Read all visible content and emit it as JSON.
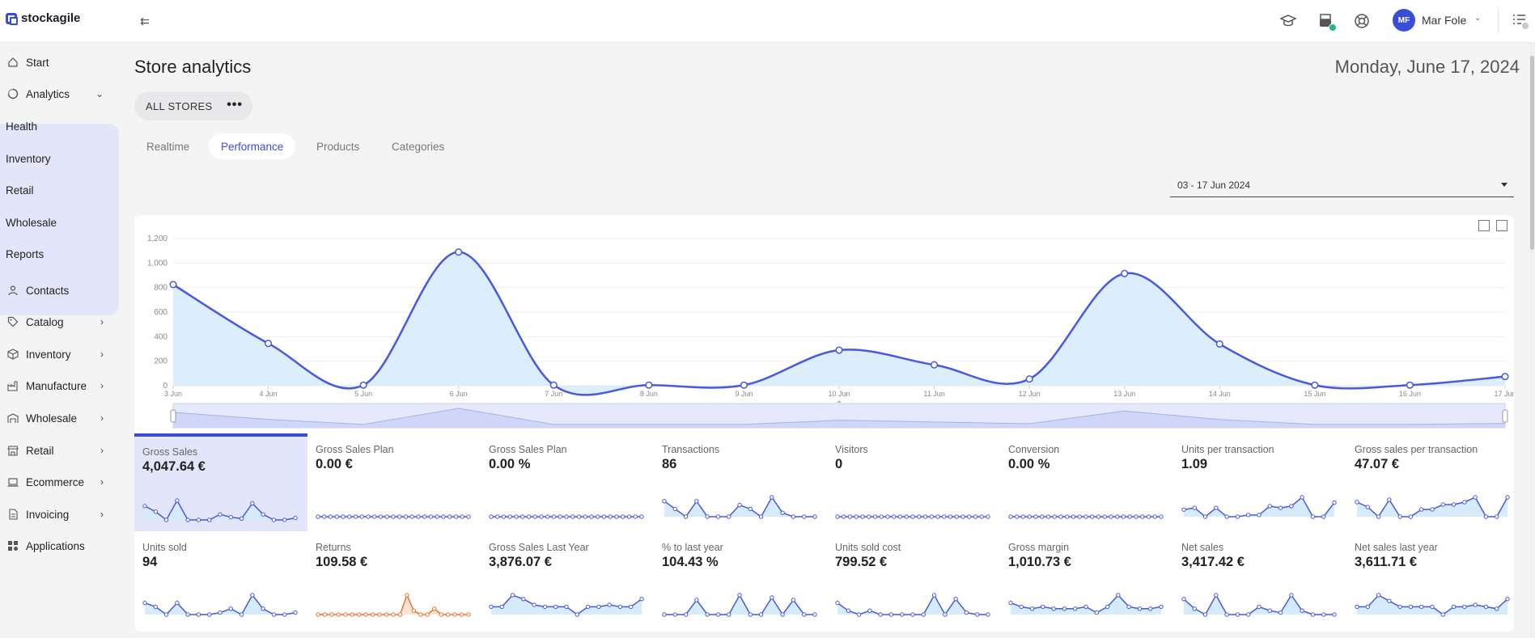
{
  "app": {
    "name": "stockagile"
  },
  "user": {
    "initials": "MF",
    "name": "Mar Fole"
  },
  "colors": {
    "accent": "#3a4dd6",
    "area_fill": "#d6ebfb",
    "line": "#4759df",
    "returns": "#e8732c",
    "active_tile": "#e3e6fa",
    "success": "#1dbb7a"
  },
  "sidebar": {
    "items": [
      {
        "label": "Start",
        "icon": "home-icon"
      },
      {
        "label": "Analytics",
        "icon": "analytics-icon",
        "expanded": true
      },
      {
        "label": "Contacts",
        "icon": "person-icon"
      },
      {
        "label": "Catalog",
        "icon": "tag-icon"
      },
      {
        "label": "Inventory",
        "icon": "box-icon"
      },
      {
        "label": "Manufacture",
        "icon": "factory-icon"
      },
      {
        "label": "Wholesale",
        "icon": "warehouse-icon"
      },
      {
        "label": "Retail",
        "icon": "store-icon"
      },
      {
        "label": "Ecommerce",
        "icon": "laptop-icon"
      },
      {
        "label": "Invoicing",
        "icon": "invoice-icon"
      },
      {
        "label": "Applications",
        "icon": "apps-icon"
      }
    ],
    "analytics_sub": [
      "Health",
      "Inventory",
      "Retail",
      "Wholesale",
      "Reports"
    ]
  },
  "page": {
    "title": "Store analytics",
    "date": "Monday, June 17, 2024",
    "stores_label": "ALL STORES",
    "more_label": "•••",
    "tabs": [
      "Realtime",
      "Performance",
      "Products",
      "Categories"
    ],
    "active_tab": "Performance",
    "date_range": "03 - 17 Jun 2024"
  },
  "chart_data": {
    "type": "area",
    "categories": [
      "3 Jun",
      "4 Jun",
      "5 Jun",
      "6 Jun",
      "7 Jun",
      "8 Jun",
      "9 Jun",
      "10 Jun",
      "11 Jun",
      "12 Jun",
      "13 Jun",
      "14 Jun",
      "15 Jun",
      "16 Jun",
      "17 Jun"
    ],
    "series": [
      {
        "values": [
          825,
          345,
          5,
          1090,
          5,
          5,
          5,
          290,
          170,
          55,
          915,
          340,
          5,
          5,
          75
        ]
      }
    ],
    "y_ticks": [
      "0",
      "200",
      "400",
      "600",
      "800",
      "1,000",
      "1,200"
    ],
    "ylim": [
      0,
      1200
    ],
    "grid": true
  },
  "metrics": [
    {
      "label": "Gross Sales",
      "value": "4,047.64 €",
      "active": true,
      "color": "#4759df",
      "spark": [
        5,
        3,
        0,
        7,
        0,
        0,
        0,
        2,
        1,
        0.5,
        6,
        2,
        0,
        0,
        0.7
      ]
    },
    {
      "label": "Gross Sales Plan",
      "value": "0.00 €",
      "color": "#4759df",
      "spark": [
        0,
        0,
        0,
        0,
        0,
        0,
        0,
        0,
        0,
        0,
        0,
        0,
        0,
        0,
        0,
        0,
        0,
        0,
        0,
        0,
        0,
        0,
        0,
        0,
        0
      ]
    },
    {
      "label": "Gross Sales Plan",
      "value": "0.00 %",
      "color": "#4759df",
      "spark": [
        0,
        0,
        0,
        0,
        0,
        0,
        0,
        0,
        0,
        0,
        0,
        0,
        0,
        0,
        0,
        0,
        0,
        0,
        0,
        0,
        0,
        0,
        0,
        0,
        0
      ]
    },
    {
      "label": "Transactions",
      "value": "86",
      "color": "#4759df",
      "spark": [
        4,
        2,
        0,
        4,
        0,
        0,
        0,
        3,
        2,
        0,
        5,
        1,
        0,
        0,
        0
      ]
    },
    {
      "label": "Visitors",
      "value": "0",
      "color": "#4759df",
      "spark": [
        0,
        0,
        0,
        0,
        0,
        0,
        0,
        0,
        0,
        0,
        0,
        0,
        0,
        0,
        0,
        0,
        0,
        0,
        0,
        0,
        0,
        0,
        0,
        0,
        0
      ]
    },
    {
      "label": "Conversion",
      "value": "0.00 %",
      "color": "#4759df",
      "spark": [
        0,
        0,
        0,
        0,
        0,
        0,
        0,
        0,
        0,
        0,
        0,
        0,
        0,
        0,
        0,
        0,
        0,
        0,
        0,
        0,
        0,
        0,
        0,
        0,
        0
      ]
    },
    {
      "label": "Units per transaction",
      "value": "1.09",
      "color": "#4759df",
      "spark": [
        2,
        2.5,
        0,
        2.5,
        0,
        0,
        0.5,
        0.5,
        3,
        2.5,
        3,
        5.5,
        0,
        0,
        4
      ]
    },
    {
      "label": "Gross sales per transaction",
      "value": "47.07 €",
      "color": "#4759df",
      "spark": [
        3,
        2,
        0,
        3.5,
        0,
        0,
        1.5,
        1.5,
        2.5,
        2.5,
        3,
        4,
        0,
        0,
        4
      ]
    },
    {
      "label": "Units sold",
      "value": "94",
      "color": "#4759df",
      "spark": [
        3,
        2,
        0,
        3,
        0,
        0,
        0,
        0.5,
        1.5,
        0,
        5,
        1.5,
        0,
        0,
        0.5
      ]
    },
    {
      "label": "Returns",
      "value": "109.58 €",
      "color": "#e8732c",
      "spark": [
        0,
        0,
        0,
        0,
        0,
        0,
        0,
        0,
        0,
        0,
        0,
        0,
        0,
        5,
        1,
        0,
        0,
        1.5,
        0,
        0,
        0,
        0,
        0
      ]
    },
    {
      "label": "Gross Sales Last Year",
      "value": "3,876.07 €",
      "color": "#4759df",
      "spark": [
        2,
        2,
        5,
        4,
        2.5,
        2,
        2,
        2,
        0,
        2,
        2,
        2.5,
        2,
        2,
        4
      ]
    },
    {
      "label": "% to last year",
      "value": "104.43 %",
      "color": "#4759df",
      "spark": [
        0,
        0,
        0,
        3,
        0,
        0,
        0,
        4,
        0,
        0,
        3.5,
        0,
        3,
        0,
        0
      ]
    },
    {
      "label": "Units sold cost",
      "value": "799.52 €",
      "color": "#4759df",
      "spark": [
        3,
        1,
        0,
        1,
        0,
        0,
        0,
        0,
        0,
        5,
        0,
        4,
        0.5,
        0,
        0
      ]
    },
    {
      "label": "Gross margin",
      "value": "1,010.73 €",
      "color": "#4759df",
      "spark": [
        3,
        2,
        1.5,
        2,
        1.5,
        1.5,
        1.5,
        2,
        0.5,
        2,
        5,
        2,
        1.5,
        1.5,
        2
      ]
    },
    {
      "label": "Net sales",
      "value": "3,417.42 €",
      "color": "#4759df",
      "spark": [
        4,
        1.5,
        0,
        5,
        0,
        0,
        0,
        2,
        1,
        0.5,
        5,
        1,
        0,
        0,
        0
      ]
    },
    {
      "label": "Net sales last year",
      "value": "3,611.71 €",
      "color": "#4759df",
      "spark": [
        2,
        2,
        5,
        3.5,
        2,
        2,
        2,
        2,
        0,
        2,
        2,
        2.5,
        2,
        1.5,
        4
      ]
    }
  ]
}
